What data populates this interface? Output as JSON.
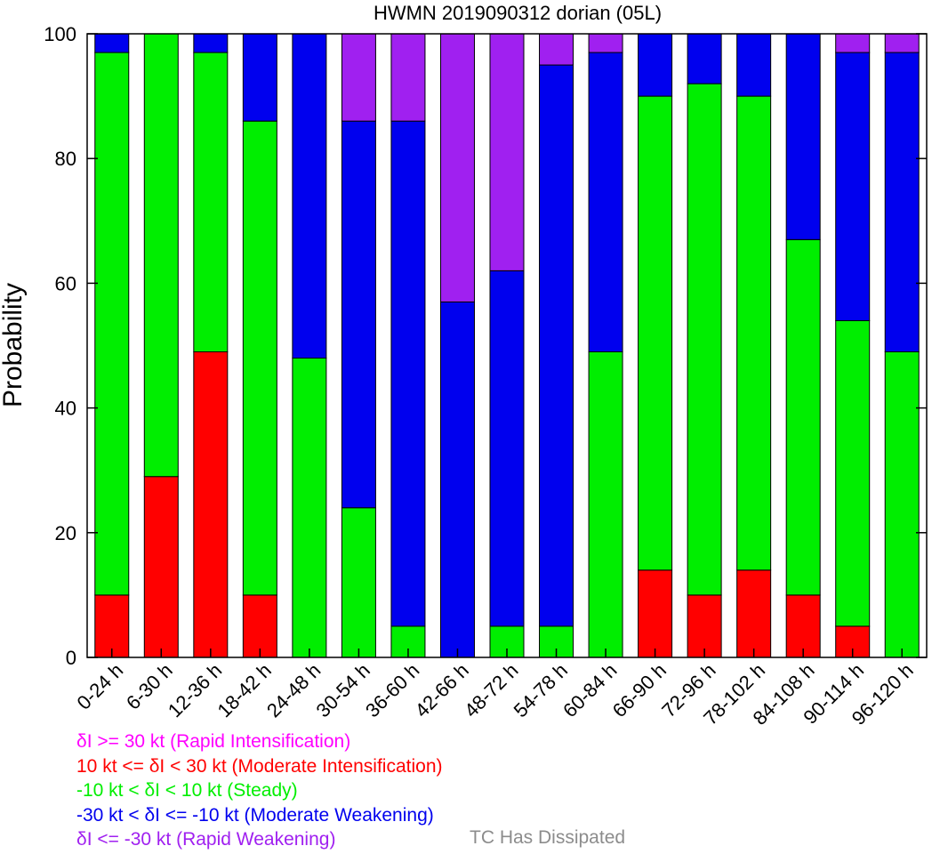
{
  "chart_data": {
    "type": "bar",
    "stacked": true,
    "title": "HWMN 2019090312 dorian (05L)",
    "xlabel": "",
    "ylabel": "Probability",
    "ylim": [
      0,
      100
    ],
    "yticks": [
      0,
      20,
      40,
      60,
      80,
      100
    ],
    "grid": false,
    "categories": [
      "0-24 h",
      "6-30 h",
      "12-36 h",
      "18-42 h",
      "24-48 h",
      "30-54 h",
      "36-60 h",
      "42-66 h",
      "48-72 h",
      "54-78 h",
      "60-84 h",
      "66-90 h",
      "72-96 h",
      "78-102 h",
      "84-108 h",
      "90-114 h",
      "96-120 h"
    ],
    "series": [
      {
        "key": "ri",
        "color": "#ff00ff",
        "values": [
          0,
          0,
          0,
          0,
          0,
          0,
          0,
          0,
          0,
          0,
          0,
          0,
          0,
          0,
          0,
          0,
          0
        ]
      },
      {
        "key": "mi",
        "color": "#ff0000",
        "values": [
          10,
          29,
          49,
          10,
          0,
          0,
          0,
          0,
          0,
          0,
          0,
          14,
          10,
          14,
          10,
          5,
          0
        ]
      },
      {
        "key": "st",
        "color": "#00ee00",
        "values": [
          87,
          71,
          48,
          76,
          48,
          24,
          5,
          0,
          5,
          5,
          49,
          76,
          82,
          76,
          57,
          49,
          49
        ]
      },
      {
        "key": "mw",
        "color": "#0000ee",
        "values": [
          3,
          0,
          3,
          14,
          52,
          62,
          81,
          57,
          57,
          90,
          48,
          10,
          8,
          10,
          33,
          43,
          48
        ]
      },
      {
        "key": "rw",
        "color": "#a020f0",
        "values": [
          0,
          0,
          0,
          0,
          0,
          14,
          14,
          43,
          38,
          5,
          3,
          0,
          0,
          0,
          0,
          3,
          3
        ]
      }
    ],
    "legend": {
      "placement": "bottom",
      "entries": [
        {
          "text": "δI >= 30 kt (Rapid Intensification)",
          "color": "#ff00ff"
        },
        {
          "text": "10 kt <= δI < 30 kt (Moderate Intensification)",
          "color": "#ff0000"
        },
        {
          "text": "-10 kt < δI < 10 kt (Steady)",
          "color": "#00ee00"
        },
        {
          "text": "-30 kt < δI <= -10 kt (Moderate Weakening)",
          "color": "#0000ee"
        },
        {
          "text": "δI <= -30 kt (Rapid Weakening)",
          "color": "#a020f0"
        }
      ],
      "dissipated": {
        "text": "TC Has Dissipated",
        "color": "#8c8c8c"
      }
    }
  }
}
